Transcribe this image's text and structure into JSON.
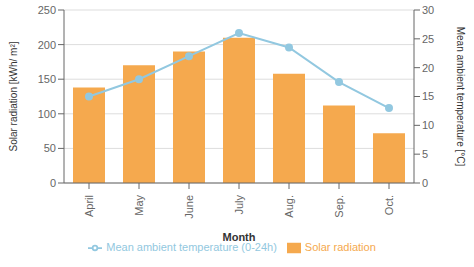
{
  "chart_data": {
    "type": "bar",
    "categories": [
      "April",
      "May",
      "June",
      "July",
      "Aug.",
      "Sep.",
      "Oct."
    ],
    "series": [
      {
        "name": "Solar radiation",
        "type": "bar",
        "color": "#F5A94E",
        "values": [
          138,
          170,
          190,
          210,
          158,
          112,
          72
        ]
      },
      {
        "name": "Mean ambient temperature (0-24h)",
        "type": "line",
        "axis": "y2",
        "color": "#92C8E0",
        "marker": "circle",
        "values": [
          15,
          18,
          22,
          26,
          23.5,
          17.5,
          13
        ]
      }
    ],
    "xlabel": "Month",
    "ylabel": "Solar radiation [kWh/ m²]",
    "y2label": "Mean ambient temperature [°C]",
    "ylim": [
      0,
      250
    ],
    "yticks": [
      0,
      50,
      100,
      150,
      200,
      250
    ],
    "y2lim": [
      0,
      30
    ],
    "y2ticks": [
      0,
      5,
      10,
      15,
      20,
      25,
      30
    ],
    "grid": true,
    "legend": "bottom"
  }
}
